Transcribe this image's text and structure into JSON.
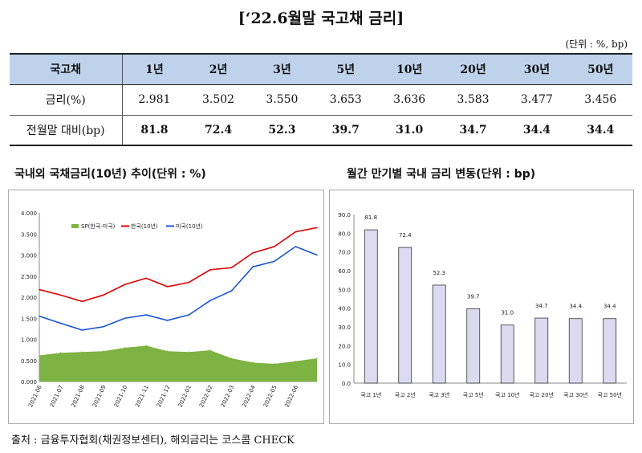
{
  "header": {
    "title": "[‘22.6월말 국고채 금리]",
    "unit": "(단위 : %, bp)"
  },
  "rate_table": {
    "columns": [
      "국고채",
      "1년",
      "2년",
      "3년",
      "5년",
      "10년",
      "20년",
      "30년",
      "50년"
    ],
    "rows": [
      {
        "label": "금리(%)",
        "values": [
          "2.981",
          "3.502",
          "3.550",
          "3.653",
          "3.636",
          "3.583",
          "3.477",
          "3.456"
        ]
      },
      {
        "label": "전월말 대비(bp)",
        "values": [
          "81.8",
          "72.4",
          "52.3",
          "39.7",
          "31.0",
          "34.7",
          "34.4",
          "34.4"
        ]
      }
    ]
  },
  "left_chart_title": "국내외 국채금리(10년) 추이(단위 : %)",
  "right_chart_title": "월간 만기별 국내 금리 변동(단위 : bp)",
  "source": "출처 : 금융투자협회(채권정보센터), 해외금리는 코스콤 CHECK",
  "colors": {
    "korea": "#e00000",
    "us": "#1a55d6",
    "spread": "#7cb342",
    "bar_fill": "#dcdaf0",
    "bar_border": "#333333"
  },
  "chart_data": [
    {
      "type": "line",
      "title": "국내외 국채금리(10년) 추이(단위 : %)",
      "ylim": [
        0.0,
        4.0
      ],
      "ytick_labels": [
        "0.000",
        "0.500",
        "1.000",
        "1.500",
        "2.000",
        "2.500",
        "3.000",
        "3.500",
        "4.000"
      ],
      "x": [
        "2021-06",
        "2021-07",
        "2021-08",
        "2021-09",
        "2021-10",
        "2021-11",
        "2021-12",
        "2022-01",
        "2022-02",
        "2022-03",
        "2022-04",
        "2022-05",
        "2022-06",
        "2022-06-30"
      ],
      "xtick_labels": [
        "2021-06",
        "2021-07",
        "2021-08",
        "2021-09",
        "2021-10",
        "2021-11",
        "2021-12",
        "2022-01",
        "2022-02",
        "2022-03",
        "2022-04",
        "2022-05",
        "2022-06"
      ],
      "legend_position": "top",
      "series": [
        {
          "name": "SP(한국-미국)",
          "kind": "area",
          "values": [
            0.62,
            0.68,
            0.7,
            0.72,
            0.8,
            0.85,
            0.72,
            0.7,
            0.74,
            0.55,
            0.45,
            0.42,
            0.48,
            0.55
          ]
        },
        {
          "name": "한국(10년)",
          "kind": "line",
          "values": [
            2.18,
            2.05,
            1.9,
            2.05,
            2.3,
            2.45,
            2.25,
            2.35,
            2.65,
            2.7,
            3.05,
            3.2,
            3.55,
            3.65
          ]
        },
        {
          "name": "미국(10년)",
          "kind": "line",
          "values": [
            1.55,
            1.38,
            1.22,
            1.3,
            1.5,
            1.58,
            1.45,
            1.58,
            1.92,
            2.15,
            2.72,
            2.85,
            3.2,
            3.0
          ]
        }
      ],
      "grid": false
    },
    {
      "type": "bar",
      "title": "월간 만기별 국내 금리 변동(단위 : bp)",
      "categories": [
        "국고 1년",
        "국고 2년",
        "국고 3년",
        "국고 5년",
        "국고 10년",
        "국고 20년",
        "국고 30년",
        "국고 50년"
      ],
      "values": [
        81.8,
        72.4,
        52.3,
        39.7,
        31.0,
        34.7,
        34.4,
        34.4
      ],
      "data_labels": [
        "81.8",
        "72.4",
        "52.3",
        "39.7",
        "31.0",
        "34.7",
        "34.4",
        "34.4"
      ],
      "ylim": [
        0,
        90
      ],
      "ytick_labels": [
        "0.0",
        "10.0",
        "20.0",
        "30.0",
        "40.0",
        "50.0",
        "60.0",
        "70.0",
        "80.0",
        "90.0"
      ],
      "grid": false
    }
  ]
}
